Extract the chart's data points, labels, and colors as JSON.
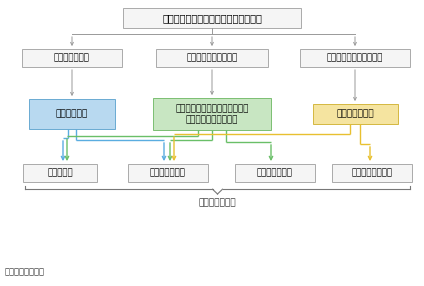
{
  "title": "地球温暖化に伴う気温・海水温の上昇",
  "level1": [
    "蒸発散量の増加",
    "大気循環・海流の変化",
    "海水の熱膨張・水の融解"
  ],
  "level2_left": {
    "text": "降雨量の増加",
    "fc": "#b8d9f0",
    "ec": "#6aabd2"
  },
  "level2_center": {
    "text": "台風の強度・経路・速度の変化\n前線や局所豪雨の変化",
    "fc": "#c8e6c2",
    "ec": "#7bbf72"
  },
  "level2_right": {
    "text": "海面水位の上昇",
    "fc": "#f5e4a0",
    "ec": "#d4b840"
  },
  "level3": [
    "洪水の激化",
    "内水氾濫の激化",
    "土砂災害の激化",
    "高潮・高波の激化"
  ],
  "bottom_label": "複合災害の激化",
  "source": "資料）国土交通省",
  "c_blue": "#5aade0",
  "c_green": "#6abf68",
  "c_yellow": "#e8c030",
  "c_gray": "#999999",
  "c_box_edge": "#aaaaaa",
  "c_box_face": "#f5f5f5"
}
